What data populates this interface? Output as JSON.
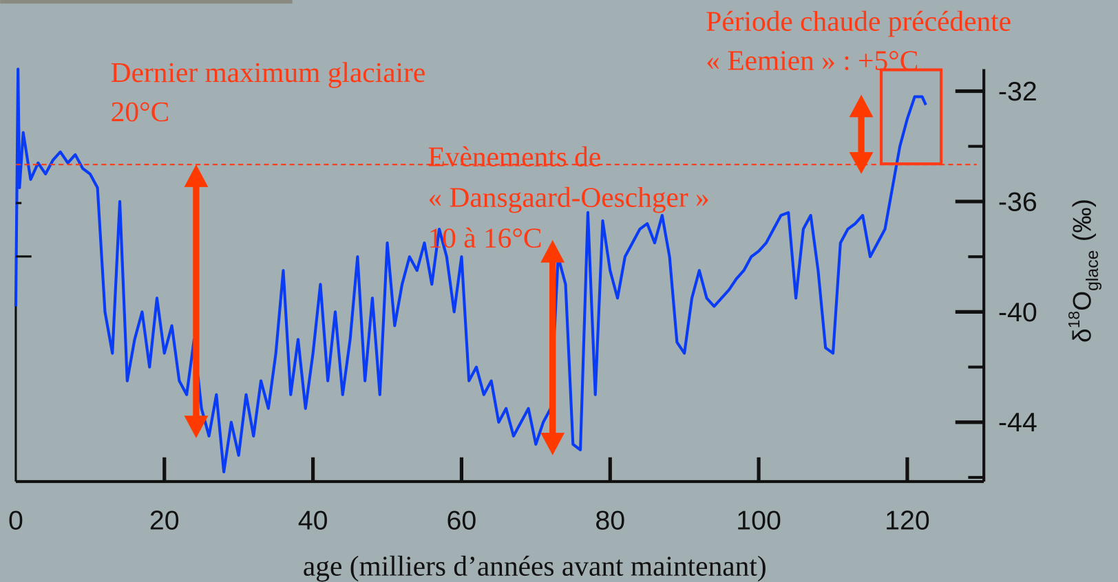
{
  "chart_data": {
    "type": "line",
    "xlabel": "age (milliers d’années avant maintenant)",
    "ylabel": {
      "base": "δ",
      "sup": "18",
      "main": "O",
      "sub": "glace",
      "unit": "(‰)"
    },
    "annotations": [
      [
        "Dernier maximum glaciaire",
        "20°C"
      ],
      [
        "Evènements de",
        "« Dansgaard-Oeschger »",
        "10 à 16°C"
      ],
      [
        "Période chaude précédente",
        "« Eemien » : +5°C"
      ]
    ],
    "xlim": [
      0,
      130.5
    ],
    "xticks": [
      0,
      20,
      40,
      60,
      80,
      100,
      120
    ],
    "ylim": [
      -46.15,
      -31.2
    ],
    "yticks": [
      -32,
      -36,
      -40,
      -44
    ],
    "yminorticks": [
      -34,
      -38,
      -42,
      -46
    ],
    "y_axis_side": "right",
    "x": [
      0,
      0.3,
      0.5,
      1,
      2,
      3,
      4,
      5,
      6,
      7,
      8,
      9,
      10,
      11,
      12,
      13,
      14,
      15,
      16,
      17,
      18,
      19,
      20,
      21,
      22,
      23,
      24,
      25,
      26,
      27,
      28,
      29,
      30,
      31,
      32,
      33,
      34,
      35,
      36,
      37,
      38,
      39,
      40,
      41,
      42,
      43,
      44,
      45,
      46,
      47,
      48,
      49,
      50,
      51,
      52,
      53,
      54,
      55,
      56,
      57,
      58,
      59,
      60,
      61,
      62,
      63,
      64,
      65,
      66,
      67,
      68,
      69,
      70,
      71,
      72,
      73,
      74,
      75,
      76,
      77,
      78,
      79,
      80,
      81,
      82,
      83,
      84,
      85,
      86,
      87,
      88,
      89,
      90,
      91,
      92,
      93,
      94,
      95,
      96,
      97,
      98,
      99,
      100,
      101,
      102,
      103,
      104,
      105,
      106,
      107,
      108,
      109,
      110,
      111,
      112,
      113,
      114,
      115,
      116,
      117,
      118,
      119,
      120,
      121,
      122,
      122.5
    ],
    "series": [
      {
        "name": "δ18O",
        "color": "#0a3cf5",
        "values": [
          -39.8,
          -31.2,
          -35.5,
          -33.5,
          -35.2,
          -34.6,
          -35.0,
          -34.5,
          -34.2,
          -34.6,
          -34.3,
          -34.8,
          -35.0,
          -35.5,
          -40.0,
          -41.5,
          -36.0,
          -42.5,
          -41.0,
          -40.0,
          -42.0,
          -39.5,
          -41.5,
          -40.5,
          -42.5,
          -43.0,
          -41.0,
          -43.5,
          -44.5,
          -43.0,
          -45.8,
          -44.0,
          -45.2,
          -43.0,
          -44.5,
          -42.5,
          -43.5,
          -41.5,
          -38.5,
          -43.0,
          -41.0,
          -43.5,
          -41.5,
          -39.0,
          -42.5,
          -40.0,
          -43.0,
          -41.0,
          -38.0,
          -42.5,
          -39.5,
          -43.0,
          -37.5,
          -40.5,
          -39.0,
          -38.0,
          -38.5,
          -37.5,
          -39.0,
          -37.0,
          -38.0,
          -40.0,
          -38.0,
          -42.5,
          -42.0,
          -43.0,
          -42.5,
          -44.0,
          -43.5,
          -44.5,
          -44.0,
          -43.5,
          -44.8,
          -44.0,
          -43.5,
          -38.0,
          -39.0,
          -44.8,
          -45.0,
          -36.4,
          -43.0,
          -36.7,
          -38.5,
          -39.5,
          -38.0,
          -37.5,
          -37.0,
          -36.8,
          -37.5,
          -36.5,
          -38.0,
          -41.1,
          -41.5,
          -39.5,
          -38.5,
          -39.5,
          -39.8,
          -39.5,
          -39.2,
          -38.8,
          -38.5,
          -38.0,
          -37.8,
          -37.5,
          -37.0,
          -36.5,
          -36.4,
          -39.5,
          -37.0,
          -36.5,
          -38.5,
          -41.3,
          -41.5,
          -37.5,
          -37.0,
          -36.8,
          -36.5,
          -38.0,
          -37.5,
          -37.0,
          -35.5,
          -34.0,
          -33.0,
          -32.2,
          -32.2,
          -32.5
        ]
      }
    ]
  }
}
